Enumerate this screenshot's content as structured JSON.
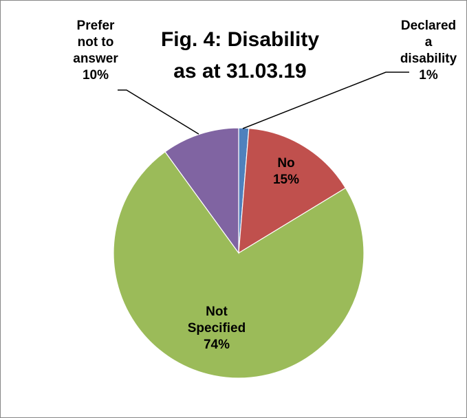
{
  "chart_data": {
    "type": "pie",
    "title": "Fig. 4: Disability",
    "subtitle": "as at 31.03.19",
    "slices": [
      {
        "label_lines": [
          "Declared",
          "a",
          "disability"
        ],
        "pct_label": "1%",
        "value": 1.3,
        "color": "#4f81bd"
      },
      {
        "label_lines": [
          "No"
        ],
        "pct_label": "15%",
        "value": 15.0,
        "color": "#c0504d"
      },
      {
        "label_lines": [
          "Not",
          "Specified"
        ],
        "pct_label": "74%",
        "value": 73.7,
        "color": "#9bbb59"
      },
      {
        "label_lines": [
          "Prefer",
          "not to",
          "answer"
        ],
        "pct_label": "10%",
        "value": 10.0,
        "color": "#8064a2"
      }
    ],
    "start_angle_deg": 0,
    "direction": "clockwise",
    "legend": "none"
  }
}
